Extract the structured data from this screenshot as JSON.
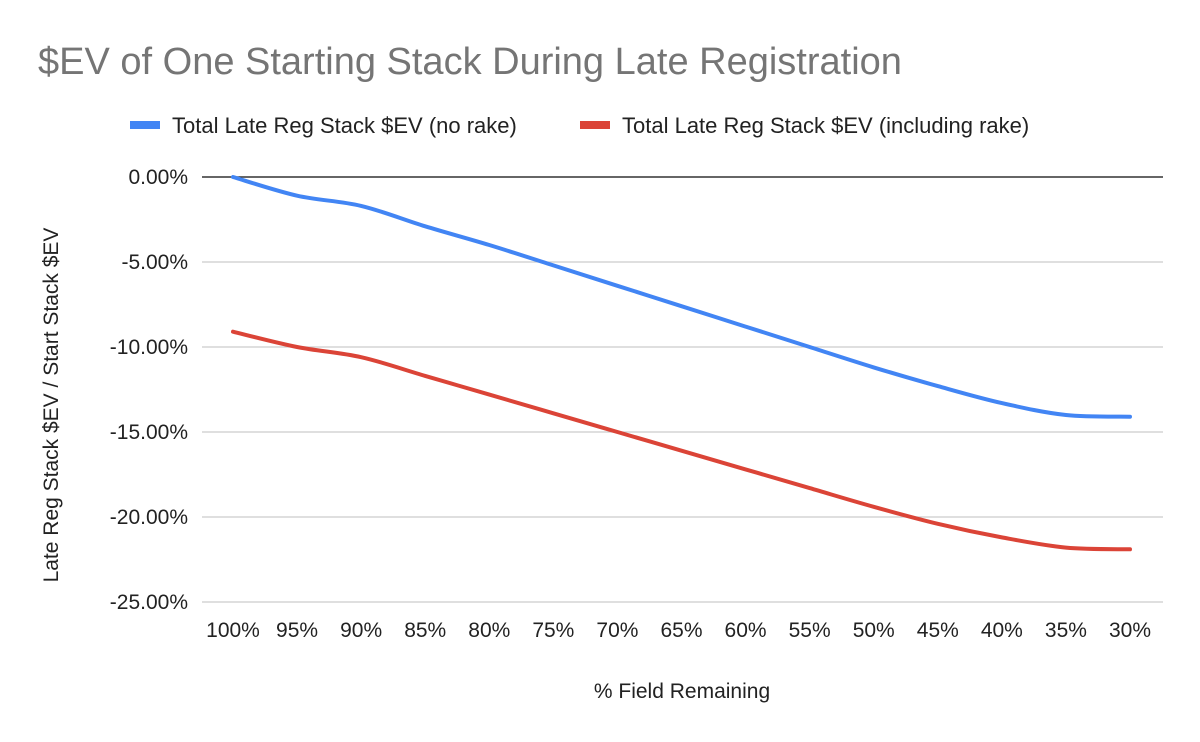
{
  "chart_data": {
    "type": "line",
    "title": "$EV of One Starting Stack During Late Registration",
    "xlabel": "% Field Remaining",
    "ylabel": "Late Reg Stack $EV / Start Stack $EV",
    "categories": [
      "100%",
      "95%",
      "90%",
      "85%",
      "80%",
      "75%",
      "70%",
      "65%",
      "60%",
      "55%",
      "50%",
      "45%",
      "40%",
      "35%",
      "30%"
    ],
    "y_ticks": [
      "0.00%",
      "-5.00%",
      "-10.00%",
      "-15.00%",
      "-20.00%",
      "-25.00%"
    ],
    "y_tick_values": [
      0,
      -5,
      -10,
      -15,
      -20,
      -25
    ],
    "ylim": [
      -25,
      0
    ],
    "grid": true,
    "legend_position": "top",
    "series": [
      {
        "name": "Total Late Reg Stack $EV (no rake)",
        "color": "#4285f4",
        "values": [
          0.0,
          -1.1,
          -1.7,
          -2.9,
          -4.0,
          -5.2,
          -6.4,
          -7.6,
          -8.8,
          -10.0,
          -11.2,
          -12.3,
          -13.3,
          -14.0,
          -14.1
        ]
      },
      {
        "name": "Total Late Reg Stack $EV (including rake)",
        "color": "#db4437",
        "values": [
          -9.1,
          -10.0,
          -10.6,
          -11.7,
          -12.8,
          -13.9,
          -15.0,
          -16.1,
          -17.2,
          -18.3,
          -19.4,
          -20.4,
          -21.2,
          -21.8,
          -21.9
        ]
      }
    ]
  }
}
